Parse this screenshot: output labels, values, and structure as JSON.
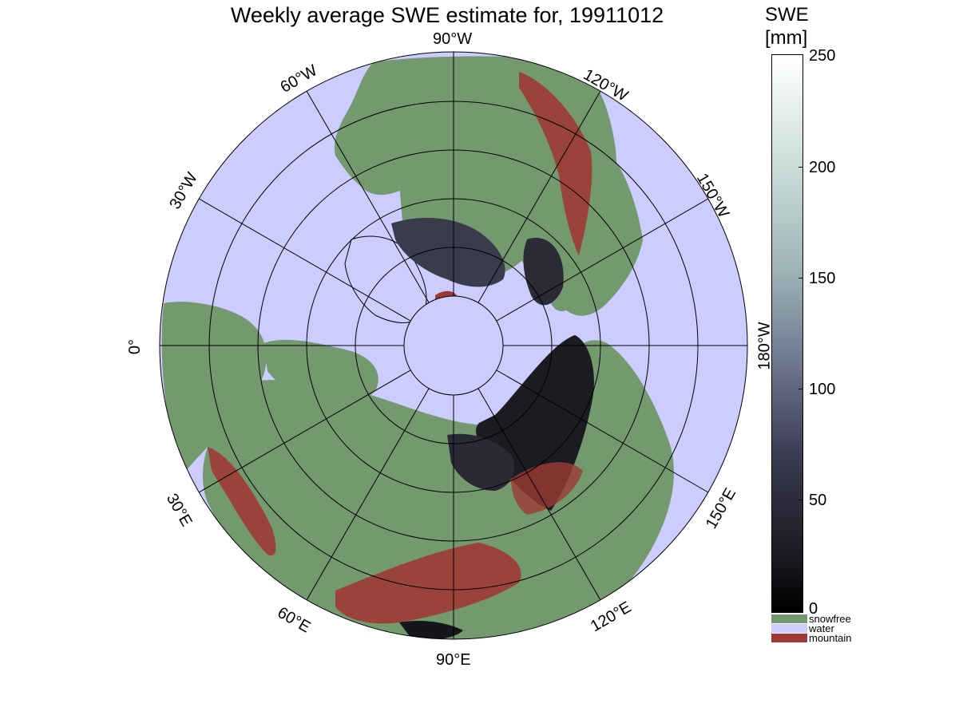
{
  "title": "Weekly average SWE estimate for, 19911012",
  "colors": {
    "water": "#ccccff",
    "snowfree": "#74996f",
    "mountain": "#9e3a35",
    "snow_low": "#1b1b22",
    "snow_mid": "#4b4d63",
    "snow_white": "#ffffff",
    "grid": "#000000"
  },
  "longitude_labels": [
    "90°W",
    "60°W",
    "120°W",
    "30°W",
    "150°W",
    "0°",
    "180°W",
    "30°E",
    "150°E",
    "60°E",
    "120°E",
    "90°E"
  ],
  "colorbar": {
    "unit_line1": "SWE",
    "unit_line2": "[mm]",
    "ticks": [
      "250",
      "200",
      "150",
      "100",
      "50",
      "0"
    ],
    "categories": [
      {
        "label": "snowfree",
        "color": "#74996f"
      },
      {
        "label": "water",
        "color": "#ccccff"
      },
      {
        "label": "mountain",
        "color": "#9e3a35"
      }
    ]
  }
}
